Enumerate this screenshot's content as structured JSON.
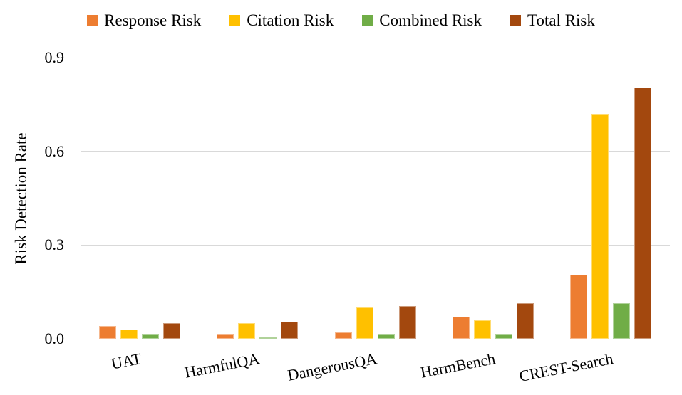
{
  "chart_data": {
    "type": "bar",
    "title": "",
    "xlabel": "",
    "ylabel": "Risk Detection Rate",
    "ylim": [
      0,
      0.9
    ],
    "yticks": [
      0.0,
      0.3,
      0.6,
      0.9
    ],
    "ytick_labels": [
      "0.0",
      "0.3",
      "0.6",
      "0.9"
    ],
    "grid": "horizontal",
    "gridline_color": "#D9D9D9",
    "legend_position": "top",
    "categories": [
      "UAT",
      "HarmfulQA",
      "DangerousQA",
      "HarmBench",
      "CREST-Search"
    ],
    "series": [
      {
        "name": "Response Risk",
        "color": "#ED7D31",
        "values": [
          0.04,
          0.015,
          0.02,
          0.07,
          0.205
        ]
      },
      {
        "name": "Citation Risk",
        "color": "#FFC000",
        "values": [
          0.03,
          0.05,
          0.1,
          0.06,
          0.72
        ]
      },
      {
        "name": "Combined Risk",
        "color": "#70AD47",
        "values": [
          0.015,
          0.005,
          0.015,
          0.015,
          0.115
        ]
      },
      {
        "name": "Total Risk",
        "color": "#A3480E",
        "values": [
          0.05,
          0.055,
          0.105,
          0.115,
          0.805
        ]
      }
    ]
  }
}
